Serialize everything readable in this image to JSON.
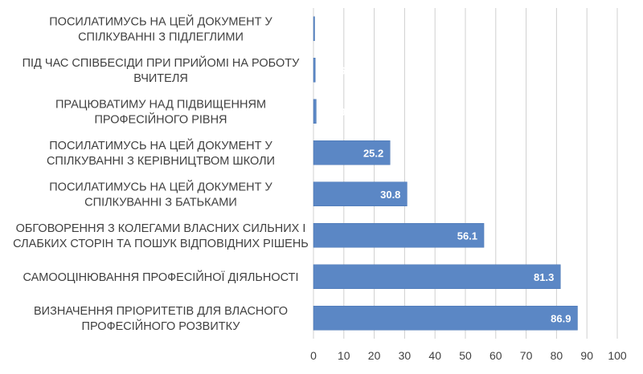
{
  "chart_data": {
    "type": "bar",
    "orientation": "horizontal",
    "categories": [
      "ПОСИЛАТИМУСЬ НА ЦЕЙ ДОКУМЕНТ У|СПІЛКУВАННІ З ПІДЛЕГЛИМИ",
      "ПІД ЧАС СПІВБЕСІДИ ПРИ ПРИЙОМІ НА РОБОТУ|ВЧИТЕЛЯ",
      "ПРАЦЮВАТИМУ НАД ПІДВИЩЕННЯМ|ПРОФЕСІЙНОГО РІВНЯ",
      "ПОСИЛАТИМУСЬ НА ЦЕЙ ДОКУМЕНТ У|СПІЛКУВАННІ З КЕРІВНИЦТВОМ ШКОЛИ",
      "ПОСИЛАТИМУСЬ НА ЦЕЙ ДОКУМЕНТ У|СПІЛКУВАННІ З БАТЬКАМИ",
      "ОБГОВОРЕННЯ З КОЛЕГАМИ ВЛАСНИХ СИЛЬНИХ І|СЛАБКИХ СТОРІН ТА ПОШУК ВІДПОВІДНИХ РІШЕНЬ",
      "САМООЦІНЮВАННЯ ПРОФЕСІЙНОЇ ДІЯЛЬНОСТІ",
      "ВИЗНАЧЕННЯ ПРІОРИТЕТІВ ДЛЯ ВЛАСНОГО|ПРОФЕСІЙНОГО РОЗВИТКУ"
    ],
    "values": [
      0.3,
      0.6,
      0.9,
      25.2,
      30.8,
      56.1,
      81.3,
      86.9
    ],
    "data_labels": [
      "",
      "0.6",
      "0.9",
      "25.2",
      "30.8",
      "56.1",
      "81.3",
      "86.9"
    ],
    "xlim": [
      0,
      100
    ],
    "xticks": [
      "0",
      "10",
      "20",
      "30",
      "40",
      "50",
      "60",
      "70",
      "80",
      "90",
      "100"
    ],
    "grid": "vertical",
    "legend": "none",
    "title": "",
    "xlabel": "",
    "ylabel": "",
    "colors": {
      "bar": "#5b87c5",
      "bar_edge": "#4a76b4",
      "grid": "#d0d0d0",
      "text": "#404040",
      "data_label": "#ffffff"
    }
  }
}
